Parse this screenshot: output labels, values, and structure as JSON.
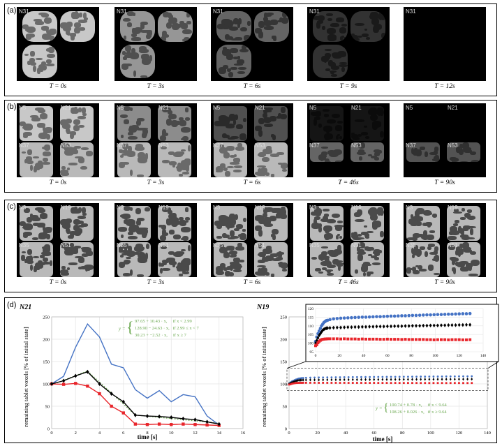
{
  "panel_a": {
    "label": "(a)",
    "frames": [
      {
        "tags": [
          "N31"
        ],
        "time": "T = 0s"
      },
      {
        "tags": [
          "N31"
        ],
        "time": "T = 3s"
      },
      {
        "tags": [
          "N31"
        ],
        "time": "T = 6s"
      },
      {
        "tags": [
          "N31"
        ],
        "time": "T = 9s"
      },
      {
        "tags": [
          "N31"
        ],
        "time": "T = 12s"
      }
    ]
  },
  "panel_b": {
    "label": "(b)",
    "frames": [
      {
        "tags": [
          "N5",
          "N21",
          "N37",
          "N53"
        ],
        "time": "T = 0s"
      },
      {
        "tags": [
          "N5",
          "N21",
          "N37",
          "N53"
        ],
        "time": "T = 3s"
      },
      {
        "tags": [
          "N5",
          "N21",
          "N37",
          "N53"
        ],
        "time": "T = 6s"
      },
      {
        "tags": [
          "N5",
          "N21",
          "N37",
          "N53"
        ],
        "time": "T = 46s"
      },
      {
        "tags": [
          "N5",
          "N21",
          "N37",
          "N53"
        ],
        "time": "T = 90s"
      }
    ]
  },
  "panel_c": {
    "label": "(c)",
    "frames": [
      {
        "tags": [
          "N3",
          "N19",
          "N35",
          "N51"
        ],
        "time": "T = 0s"
      },
      {
        "tags": [
          "N3",
          "N19",
          "N35",
          "N51"
        ],
        "time": "T = 3s"
      },
      {
        "tags": [
          "N3",
          "N19",
          "N35",
          "N51"
        ],
        "time": "T = 6s"
      },
      {
        "tags": [
          "N3",
          "N19",
          "N35",
          "N51"
        ],
        "time": "T = 46s"
      },
      {
        "tags": [
          "N3",
          "N19",
          "N35",
          "N51"
        ],
        "time": "T = 90s"
      }
    ]
  },
  "panel_d": {
    "label": "(d)",
    "colors": {
      "blue": "#4472c4",
      "black": "#000000",
      "red": "#e8242a",
      "green": "#6aa84f"
    }
  },
  "chart_data": [
    {
      "type": "line",
      "title": "N21",
      "xlabel": "time [s]",
      "ylabel": "remaining tablet voxels [% of initial state]",
      "xlim": [
        0,
        16
      ],
      "ylim": [
        0,
        250
      ],
      "xticks": [
        0,
        2,
        4,
        6,
        8,
        10,
        12,
        14,
        16
      ],
      "yticks": [
        0,
        50,
        100,
        150,
        200,
        250
      ],
      "series": [
        {
          "color": "#4472c4",
          "marker": "circle",
          "x": [
            0,
            1,
            2,
            3,
            4,
            5,
            6,
            7,
            8,
            9,
            10,
            11,
            12,
            13,
            14
          ],
          "y": [
            100,
            117,
            182,
            234,
            205,
            144,
            136,
            87,
            68,
            85,
            60,
            76,
            71,
            28,
            8
          ]
        },
        {
          "color": "#e8242a",
          "marker": "square",
          "x": [
            0,
            1,
            2,
            3,
            4,
            5,
            6,
            7,
            8,
            9,
            10,
            11,
            12,
            13,
            14
          ],
          "y": [
            100,
            99,
            101,
            95,
            78,
            50,
            35,
            10,
            9,
            10,
            9,
            10,
            9,
            8,
            7
          ]
        },
        {
          "color": "#000000",
          "marker": "diamond",
          "x": [
            0,
            1,
            2,
            3,
            4,
            5,
            6,
            7,
            8,
            9,
            10,
            11,
            12,
            13,
            14
          ],
          "y": [
            100,
            107,
            118,
            127,
            100,
            78,
            60,
            30,
            28,
            27,
            25,
            22,
            20,
            15,
            10
          ]
        }
      ],
      "fit": {
        "color": "#6aa84f",
        "label": "y =",
        "lines": [
          "97.65 + 10.43 · x,     if x < 2.99",
          "128.90 − 24.63 · x,   if 2.99 ≤ x < 7",
          "30.23 + −2.52 · x,     if x ≥ 7"
        ],
        "segments": [
          [
            0,
            97.65,
            2.99,
            128.8
          ],
          [
            2.99,
            128.8,
            7,
            30.2
          ],
          [
            7,
            30.2,
            14,
            12
          ]
        ]
      }
    },
    {
      "type": "scatter",
      "title": "N19",
      "xlabel": "time [s]",
      "ylabel": "remaining tablet voxels [% of initial state]",
      "xlim": [
        0,
        140
      ],
      "ylim": [
        0,
        250
      ],
      "xticks": [
        0,
        20,
        40,
        60,
        80,
        100,
        120,
        140
      ],
      "yticks": [
        0,
        50,
        100,
        150,
        200,
        250
      ],
      "inset": {
        "xlim": [
          0,
          140
        ],
        "ylim": [
          95,
          120
        ],
        "xticks": [
          0,
          20,
          40,
          60,
          80,
          100,
          120,
          140
        ],
        "yticks": [
          95,
          100,
          105,
          110,
          115,
          120
        ]
      },
      "series": [
        {
          "color": "#4472c4",
          "marker": "circle",
          "x": [
            0,
            1,
            2,
            3,
            4,
            5,
            6,
            7,
            8,
            9,
            10,
            12,
            15,
            18,
            21,
            24,
            27,
            30,
            33,
            36,
            39,
            42,
            45,
            48,
            51,
            54,
            57,
            60,
            63,
            66,
            69,
            72,
            75,
            78,
            81,
            84,
            87,
            90,
            93,
            96,
            99,
            102,
            105,
            108,
            111,
            114,
            117,
            120,
            123,
            126,
            129
          ],
          "y": [
            101,
            103.5,
            105.5,
            107,
            108.5,
            110,
            111,
            112,
            112.5,
            113,
            113.2,
            113.6,
            114,
            114.2,
            114.4,
            114.5,
            114.6,
            114.7,
            114.8,
            114.9,
            115,
            115,
            115.1,
            115.2,
            115.3,
            115.3,
            115.4,
            115.5,
            115.6,
            115.6,
            115.7,
            115.8,
            115.8,
            115.9,
            116,
            116,
            116.1,
            116.2,
            116.3,
            116.3,
            116.4,
            116.5,
            116.5,
            116.6,
            116.7,
            116.7,
            116.8,
            116.9,
            117,
            117,
            117.1
          ]
        },
        {
          "color": "#000000",
          "marker": "diamond",
          "x": [
            0,
            1,
            2,
            3,
            4,
            5,
            6,
            7,
            8,
            9,
            10,
            12,
            15,
            18,
            21,
            24,
            27,
            30,
            33,
            36,
            39,
            42,
            45,
            48,
            51,
            54,
            57,
            60,
            63,
            66,
            69,
            72,
            75,
            78,
            81,
            84,
            87,
            90,
            93,
            96,
            99,
            102,
            105,
            108,
            111,
            114,
            117,
            120,
            123,
            126,
            129
          ],
          "y": [
            100,
            101.5,
            103,
            104.5,
            105.5,
            106.5,
            107.5,
            108,
            108.4,
            108.6,
            108.7,
            108.8,
            108.9,
            109,
            109,
            109.1,
            109.2,
            109.2,
            109.3,
            109.3,
            109.4,
            109.4,
            109.5,
            109.5,
            109.6,
            109.6,
            109.6,
            109.7,
            109.7,
            109.8,
            109.8,
            109.8,
            109.9,
            109.9,
            110,
            110,
            110,
            110.1,
            110.1,
            110.2,
            110.2,
            110.2,
            110.3,
            110.3,
            110.4,
            110.4,
            110.4,
            110.5,
            110.5,
            110.6,
            110.6
          ]
        },
        {
          "color": "#e8242a",
          "marker": "square",
          "x": [
            0,
            1,
            2,
            3,
            4,
            5,
            6,
            7,
            8,
            9,
            10,
            12,
            15,
            18,
            21,
            24,
            27,
            30,
            33,
            36,
            39,
            42,
            45,
            48,
            51,
            54,
            57,
            60,
            63,
            66,
            69,
            72,
            75,
            78,
            81,
            84,
            87,
            90,
            93,
            96,
            99,
            102,
            105,
            108,
            111,
            114,
            117,
            120,
            123,
            126,
            129
          ],
          "y": [
            98.5,
            99,
            100.2,
            101,
            101.6,
            102,
            102.2,
            102.3,
            102.4,
            102.4,
            102.5,
            102.5,
            102.5,
            102.5,
            102.4,
            102.5,
            102.4,
            102.4,
            102.4,
            102.3,
            102.4,
            102.3,
            102.3,
            102.3,
            102.3,
            102.2,
            102.2,
            102.3,
            102.2,
            102.2,
            102.2,
            102.1,
            102.2,
            102.1,
            102.1,
            102.1,
            102.1,
            102.1,
            102,
            102,
            101.9,
            102,
            102,
            102,
            101.9,
            102,
            102,
            102,
            101.9,
            101.9,
            102
          ]
        }
      ],
      "fit": {
        "color": "#6aa84f",
        "label": "y =",
        "lines": [
          "100.74 + 0.78 · x,     if x < 9.64",
          "108.26 + 0.026 · x,   if x ≥ 9.64"
        ]
      }
    }
  ]
}
